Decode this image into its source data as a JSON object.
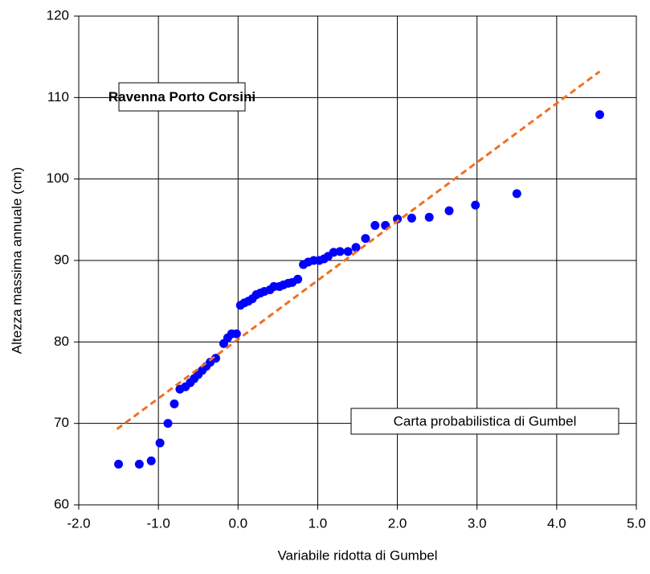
{
  "chart_data": {
    "type": "scatter",
    "x_label": "Variabile ridotta di Gumbel",
    "y_label": "Altezza massima annuale (cm)",
    "annotations": [
      "Ravenna Porto Corsini",
      "Carta probabilistica di Gumbel"
    ],
    "xlim": [
      -2,
      5
    ],
    "xticks": [
      {
        "value": -2,
        "label": "-2.0"
      },
      {
        "value": -1,
        "label": "-1.0"
      },
      {
        "value": 0,
        "label": "0.0"
      },
      {
        "value": 1,
        "label": "1.0"
      },
      {
        "value": 2,
        "label": "2.0"
      },
      {
        "value": 3,
        "label": "3.0"
      },
      {
        "value": 4,
        "label": "4.0"
      },
      {
        "value": 5,
        "label": "5.0"
      }
    ],
    "ylim": [
      60,
      120
    ],
    "yticks": [
      60,
      70,
      80,
      90,
      100,
      110,
      120
    ],
    "grid": true,
    "series": [
      {
        "color": "#0000ff",
        "mode": "markers",
        "x": [
          -1.5,
          -1.24,
          -1.09,
          -0.98,
          -0.88,
          -0.8,
          -0.73,
          -0.66,
          -0.6,
          -0.55,
          -0.5,
          -0.45,
          -0.4,
          -0.35,
          -0.28,
          -0.18,
          -0.13,
          -0.08,
          -0.02,
          0.03,
          0.08,
          0.13,
          0.18,
          0.23,
          0.28,
          0.33,
          0.4,
          0.45,
          0.52,
          0.57,
          0.63,
          0.68,
          0.75,
          0.82,
          0.88,
          0.95,
          1.02,
          1.08,
          1.13,
          1.2,
          1.28,
          1.38,
          1.48,
          1.6,
          1.72,
          1.85,
          2.0,
          2.18,
          2.4,
          2.65,
          2.98,
          3.5,
          4.54
        ],
        "values": [
          65.0,
          65.0,
          65.4,
          67.6,
          70.0,
          72.4,
          74.2,
          74.5,
          75.0,
          75.5,
          76.0,
          76.5,
          77.0,
          77.5,
          78.0,
          79.8,
          80.5,
          81.0,
          81.0,
          84.5,
          84.8,
          85.0,
          85.3,
          85.8,
          86.0,
          86.2,
          86.4,
          86.8,
          86.8,
          87.0,
          87.2,
          87.3,
          87.7,
          89.5,
          89.8,
          90.0,
          90.0,
          90.2,
          90.5,
          91.0,
          91.1,
          91.1,
          91.6,
          92.7,
          94.3,
          94.3,
          95.1,
          95.2,
          95.3,
          96.1,
          96.8,
          98.2,
          107.9
        ]
      },
      {
        "color": "#f07020",
        "mode": "dashed-line",
        "x": [
          -1.52,
          4.54
        ],
        "values": [
          69.3,
          113.2
        ]
      }
    ]
  }
}
